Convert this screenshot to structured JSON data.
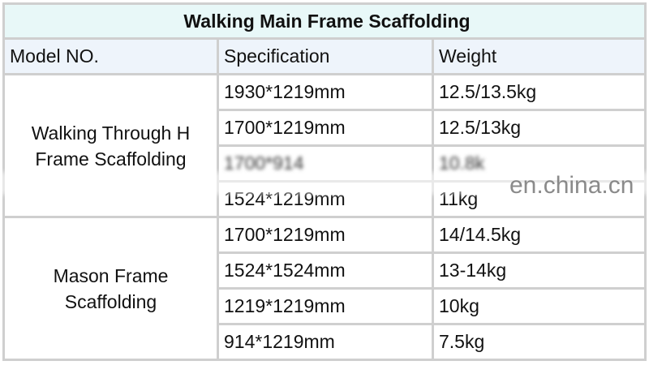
{
  "title": "Walking Main Frame Scaffolding",
  "headers": [
    "Model NO.",
    "Specification",
    "Weight"
  ],
  "groups": [
    {
      "model_line1": "Walking Through H",
      "model_line2": "Frame Scaffolding",
      "rows": [
        [
          "1930*1219mm",
          "12.5/13.5kg"
        ],
        [
          "1700*1219mm",
          "12.5/13kg"
        ],
        [
          "1700*914",
          "10.8k"
        ],
        [
          "1524*1219mm",
          "11kg"
        ]
      ]
    },
    {
      "model_line1": "Mason Frame",
      "model_line2": "Scaffolding",
      "rows": [
        [
          "1700*1219mm",
          "14/14.5kg"
        ],
        [
          "1524*1524mm",
          "13-14kg"
        ],
        [
          "1219*1219mm",
          "10kg"
        ],
        [
          "914*1219mm",
          "7.5kg"
        ]
      ]
    }
  ],
  "watermark": "en.china.cn",
  "colors": {
    "title_bg": "#e8f8f8",
    "header_bg": "#eef4fb",
    "border": "#cfcfcf"
  }
}
